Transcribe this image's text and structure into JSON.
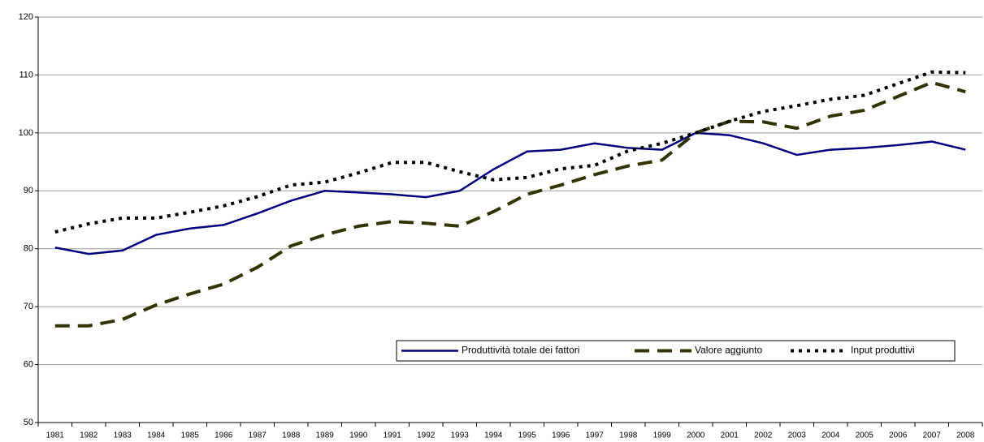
{
  "chart_data": {
    "type": "line",
    "categories": [
      "1981",
      "1982",
      "1983",
      "1984",
      "1985",
      "1986",
      "1987",
      "1988",
      "1989",
      "1990",
      "1991",
      "1992",
      "1993",
      "1994",
      "1995",
      "1996",
      "1997",
      "1998",
      "1999",
      "2000",
      "2001",
      "2002",
      "2003",
      "2004",
      "2005",
      "2006",
      "2007",
      "2008"
    ],
    "series": [
      {
        "name": "Produttività totale dei fattori",
        "color": "#000080",
        "dash": "solid",
        "values": [
          80.2,
          79.1,
          79.7,
          82.4,
          83.5,
          84.1,
          86.1,
          88.3,
          90.0,
          89.7,
          89.4,
          88.9,
          90.0,
          93.7,
          96.8,
          97.1,
          98.2,
          97.4,
          97.1,
          100,
          99.6,
          98.2,
          96.2,
          97.1,
          97.4,
          97.9,
          98.5,
          97.1
        ]
      },
      {
        "name": "Valore aggiunto",
        "color": "#333300",
        "dash": "long",
        "values": [
          66.7,
          66.7,
          67.8,
          70.3,
          72.2,
          73.9,
          76.8,
          80.5,
          82.4,
          83.9,
          84.7,
          84.4,
          83.9,
          86.4,
          89.4,
          91.0,
          92.8,
          94.3,
          95.3,
          100,
          102.0,
          101.9,
          100.8,
          102.9,
          103.9,
          106.3,
          108.7,
          107.1
        ]
      },
      {
        "name": "Input produttivi",
        "color": "#000000",
        "dash": "dot",
        "values": [
          82.9,
          84.3,
          85.3,
          85.3,
          86.3,
          87.4,
          89.0,
          91.0,
          91.5,
          93.1,
          94.9,
          94.9,
          93.3,
          91.9,
          92.3,
          93.8,
          94.4,
          96.9,
          98.2,
          100,
          102.0,
          103.7,
          104.7,
          105.8,
          106.5,
          108.5,
          110.5,
          110.4
        ]
      }
    ],
    "ylim": [
      50,
      120
    ],
    "yticks": [
      50,
      60,
      70,
      80,
      90,
      100,
      110,
      120
    ],
    "grid": true,
    "legend": "lower-right"
  }
}
